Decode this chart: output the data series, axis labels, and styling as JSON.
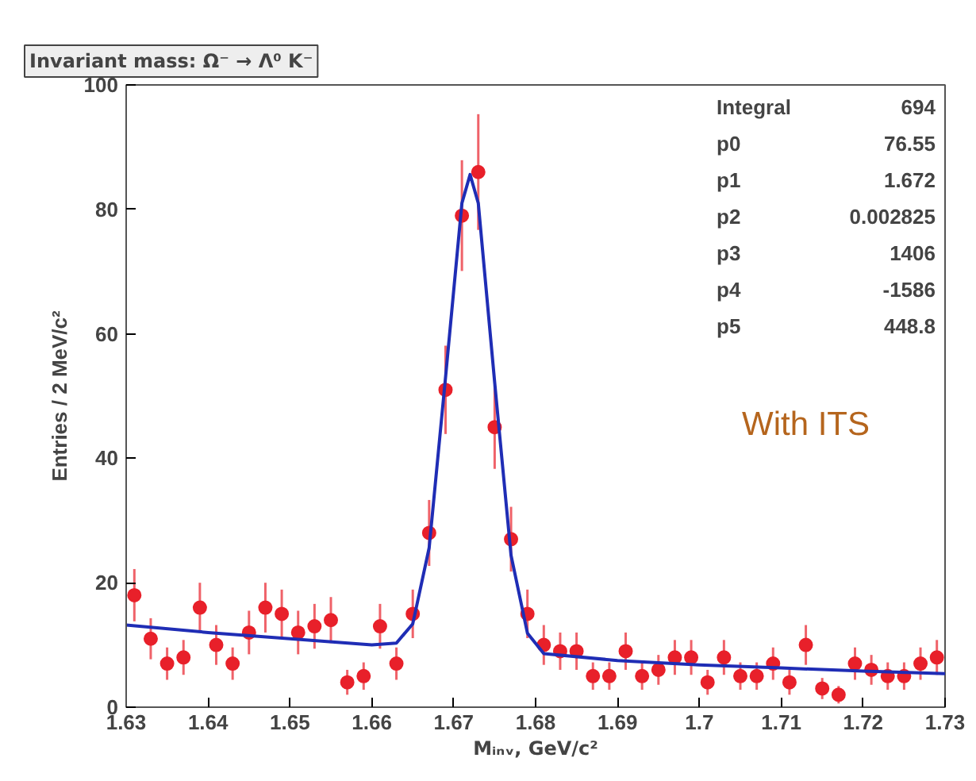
{
  "chart_data": {
    "type": "scatter",
    "title": "Invariant mass: Ω⁻ → Λ⁰ K⁻",
    "xlabel": "Mᵢₙᵥ, GeV/c²",
    "ylabel": "Entries / 2 MeV/c²",
    "x": [
      1.631,
      1.633,
      1.635,
      1.637,
      1.639,
      1.641,
      1.643,
      1.645,
      1.647,
      1.649,
      1.651,
      1.653,
      1.655,
      1.657,
      1.659,
      1.661,
      1.663,
      1.665,
      1.667,
      1.669,
      1.671,
      1.673,
      1.675,
      1.677,
      1.679,
      1.681,
      1.683,
      1.685,
      1.687,
      1.689,
      1.691,
      1.693,
      1.695,
      1.697,
      1.699,
      1.701,
      1.703,
      1.705,
      1.707,
      1.709,
      1.711,
      1.713,
      1.715,
      1.717,
      1.719,
      1.721,
      1.723,
      1.725,
      1.727,
      1.729
    ],
    "series": [
      {
        "color": "#e8202a",
        "marker": "circle",
        "values": [
          18,
          11,
          7,
          8,
          16,
          10,
          7,
          12,
          16,
          15,
          12,
          13,
          14,
          4,
          5,
          13,
          7,
          15,
          28,
          51,
          79,
          86,
          45,
          27,
          15,
          10,
          9,
          9,
          5,
          5,
          9,
          5,
          6,
          8,
          8,
          4,
          8,
          5,
          5,
          7,
          4,
          10,
          3,
          2,
          7,
          6,
          5,
          5,
          7,
          8
        ],
        "errors": [
          4.2,
          3.3,
          2.6,
          2.8,
          4,
          3.2,
          2.6,
          3.5,
          4,
          3.9,
          3.5,
          3.6,
          3.7,
          2,
          2.2,
          3.6,
          2.6,
          3.9,
          5.3,
          7.1,
          8.9,
          9.3,
          6.7,
          5.2,
          3.9,
          3.2,
          3,
          3,
          2.2,
          2.2,
          3,
          2.2,
          2.4,
          2.8,
          2.8,
          2,
          2.8,
          2.2,
          2.2,
          2.6,
          2,
          3.2,
          1.7,
          1.4,
          2.6,
          2.4,
          2.2,
          2.2,
          2.6,
          2.8
        ]
      },
      {
        "type": "line",
        "color": "#1f2db5",
        "line_style": "solid",
        "marker": "none",
        "x": [
          1.63,
          1.64,
          1.65,
          1.66,
          1.663,
          1.665,
          1.667,
          1.669,
          1.671,
          1.672,
          1.673,
          1.675,
          1.677,
          1.679,
          1.681,
          1.69,
          1.7,
          1.71,
          1.72,
          1.73
        ],
        "values": [
          13.2,
          12.0,
          11.0,
          10.0,
          10.3,
          13.4,
          25.6,
          53,
          81,
          85.6,
          81,
          52.2,
          24.4,
          11.9,
          8.6,
          7.5,
          6.8,
          6.3,
          5.8,
          5.4
        ]
      }
    ],
    "xlim": [
      1.63,
      1.73
    ],
    "xticks": [
      1.63,
      1.64,
      1.65,
      1.66,
      1.67,
      1.68,
      1.69,
      1.7,
      1.71,
      1.72,
      1.73
    ],
    "ylim": [
      0,
      100
    ],
    "yticks": [
      0,
      20,
      40,
      60,
      80,
      100
    ],
    "grid": false,
    "annotations": [
      "Integral",
      "694",
      "p0",
      "76.55",
      "p1",
      "1.672",
      "p2",
      "0.002825",
      "p3",
      "1406",
      "p4",
      "-1586",
      "p5",
      "448.8",
      "With ITS"
    ]
  }
}
